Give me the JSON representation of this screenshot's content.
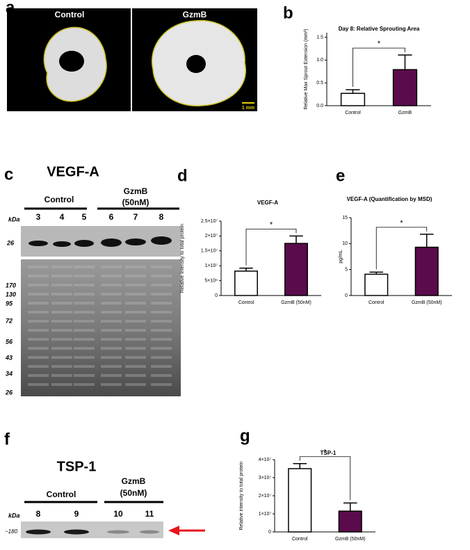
{
  "panel_letters": [
    "a",
    "b",
    "c",
    "d",
    "e",
    "f",
    "g"
  ],
  "panel_a": {
    "left_label": "Control",
    "right_label": "GzmB",
    "scale_bar": "1 mm"
  },
  "panel_c": {
    "title": "VEGF-A",
    "group_1": "Control",
    "group_2_line_1": "GzmB",
    "group_2_line_2": "(50nM)",
    "unit": "kDa",
    "lanes": [
      "3",
      "4",
      "5",
      "6",
      "7",
      "8"
    ],
    "blot_marker": "26",
    "gel_markers": [
      "170",
      "130",
      "95",
      "72",
      "56",
      "43",
      "34",
      "26"
    ]
  },
  "panel_f": {
    "title": "TSP-1",
    "group_1": "Control",
    "group_2_line_1": "GzmB",
    "group_2_line_2": "(50nM)",
    "unit": "kDa",
    "lanes": [
      "8",
      "9",
      "10",
      "11"
    ],
    "blot_marker": "~180"
  },
  "chart_data": [
    {
      "type": "bar",
      "title": "Day 8: Relative Sprouting Area",
      "y_label": "Relative Max Sprout Extension (mm²)",
      "categories": [
        "Control",
        "GzmB"
      ],
      "values": [
        0.27,
        0.79
      ],
      "errors": [
        0.08,
        0.32
      ],
      "colors": [
        "#ffffff",
        "#5b0b4c"
      ],
      "ylim": [
        0,
        1.6
      ],
      "yticks": [
        {
          "value": 0,
          "label": "0.0"
        },
        {
          "value": 0.5,
          "label": "0.5"
        },
        {
          "value": 1,
          "label": "1.0"
        },
        {
          "value": 1.5,
          "label": "1.5"
        }
      ],
      "annotation": "*"
    },
    {
      "type": "bar",
      "title": "VEGF-A",
      "y_label": "Relative intensity to total protein",
      "categories": [
        "Control",
        "GzmB (50nM)"
      ],
      "values": [
        8200000,
        17500000
      ],
      "errors": [
        1000000,
        2500000
      ],
      "colors": [
        "#ffffff",
        "#5b0b4c"
      ],
      "ylim": [
        0,
        25000000
      ],
      "yticks": [
        0,
        {
          "value": 5000000,
          "label": "5×10⁶"
        },
        {
          "value": 10000000,
          "label": "1×10⁷"
        },
        {
          "value": 15000000,
          "label": "1.5×10⁷"
        },
        {
          "value": 20000000,
          "label": "2×10⁷"
        },
        {
          "value": 25000000,
          "label": "2.5×10⁷"
        }
      ],
      "annotation": "*"
    },
    {
      "type": "bar",
      "title": "VEGF-A (Quantification by MSD)",
      "y_label": "pg/mL",
      "categories": [
        "Control",
        "GzmB (50nM)"
      ],
      "values": [
        4.1,
        9.3
      ],
      "errors": [
        0.4,
        2.5
      ],
      "colors": [
        "#ffffff",
        "#5b0b4c"
      ],
      "ylim": [
        0,
        15
      ],
      "yticks": [
        0,
        5,
        10,
        15
      ],
      "annotation": "*"
    },
    {
      "type": "bar",
      "title": "TSP-1",
      "y_label": "Relative intensity to total protein",
      "categories": [
        "Control",
        "GzmB (50nM)"
      ],
      "values": [
        35000000,
        11500000
      ],
      "errors": [
        2800000,
        4500000
      ],
      "colors": [
        "#ffffff",
        "#5b0b4c"
      ],
      "ylim": [
        0,
        40000000
      ],
      "yticks": [
        0,
        {
          "value": 10000000,
          "label": "1×10⁷"
        },
        {
          "value": 20000000,
          "label": "2×10⁷"
        },
        {
          "value": 30000000,
          "label": "3×10⁷"
        },
        {
          "value": 40000000,
          "label": "4×10⁷"
        }
      ],
      "annotation": "*"
    }
  ]
}
